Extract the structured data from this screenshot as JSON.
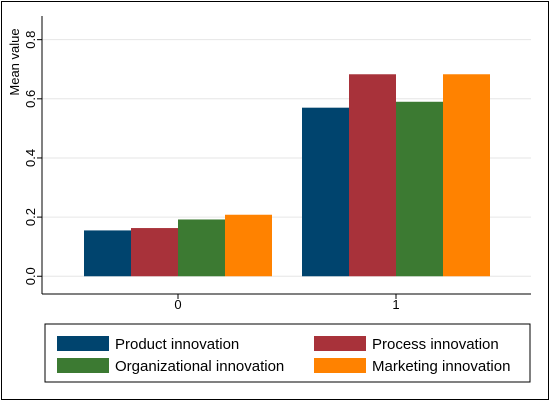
{
  "chart_data": {
    "type": "bar",
    "categories": [
      "0",
      "1"
    ],
    "series": [
      {
        "name": "Product innovation",
        "values": [
          0.155,
          0.57
        ],
        "color": "#00446e"
      },
      {
        "name": "Process innovation",
        "values": [
          0.163,
          0.683
        ],
        "color": "#a8323a"
      },
      {
        "name": "Organizational innovation",
        "values": [
          0.192,
          0.59
        ],
        "color": "#3c7a32"
      },
      {
        "name": "Marketing innovation",
        "values": [
          0.208,
          0.683
        ],
        "color": "#ff8200"
      }
    ],
    "ylabel": "Mean value",
    "xlabel": "",
    "ylim": [
      -0.06,
      0.88
    ],
    "yticks": [
      0.0,
      0.2,
      0.4,
      0.6,
      0.8
    ],
    "ytick_labels": [
      "0.0",
      "0.2",
      "0.4",
      "0.6",
      "0.8"
    ],
    "grid": true,
    "legend_position": "bottom",
    "legend_columns": 2
  }
}
